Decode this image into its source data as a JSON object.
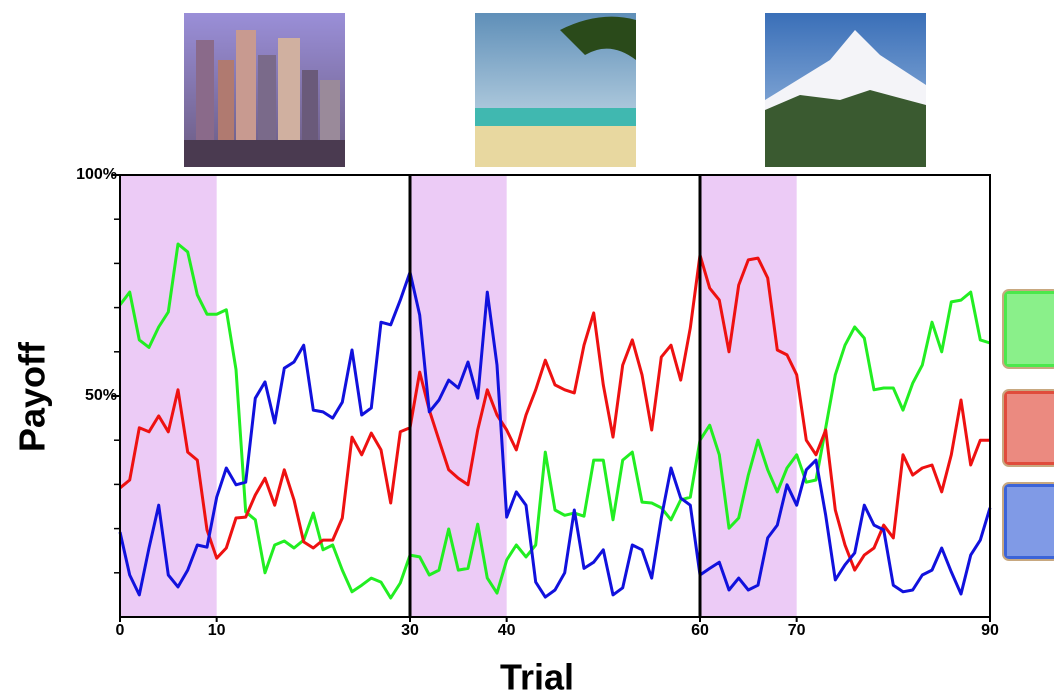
{
  "chart_data": {
    "type": "line",
    "xlabel": "Trial",
    "ylabel": "Payoff",
    "x": [
      0,
      1,
      2,
      3,
      4,
      5,
      6,
      7,
      8,
      9,
      10,
      11,
      12,
      13,
      14,
      15,
      16,
      17,
      18,
      19,
      20,
      21,
      22,
      23,
      24,
      25,
      26,
      27,
      28,
      29,
      30,
      31,
      32,
      33,
      34,
      35,
      36,
      37,
      38,
      39,
      40,
      41,
      42,
      43,
      44,
      45,
      46,
      47,
      48,
      49,
      50,
      51,
      52,
      53,
      54,
      55,
      56,
      57,
      58,
      59,
      60,
      61,
      62,
      63,
      64,
      65,
      66,
      67,
      68,
      69,
      70,
      71,
      72,
      73,
      74,
      75,
      76,
      77,
      78,
      79,
      80,
      81,
      82,
      83,
      84,
      85,
      86,
      87,
      88,
      89,
      90
    ],
    "series": [
      {
        "color": "#22ee22",
        "values": [
          70.6,
          73.5,
          62.7,
          61,
          65.6,
          69,
          84.4,
          82.6,
          72.9,
          68.5,
          68.5,
          69.5,
          56,
          23.8,
          22,
          10,
          16.3,
          17.2,
          15.6,
          17.4,
          23.5,
          15.2,
          16.3,
          10.6,
          5.7,
          7.2,
          8.8,
          7.9,
          4.3,
          7.7,
          14,
          13.6,
          9.5,
          10.6,
          19.9,
          10.6,
          11,
          21,
          8.8,
          5.4,
          12.9,
          16.3,
          13.6,
          16.3,
          37.3,
          24.2,
          23,
          23.5,
          22.8,
          35.5,
          35.5,
          22,
          35.5,
          37.3,
          26,
          25.8,
          24.7,
          22,
          26.5,
          27.1,
          40,
          43.4,
          36.7,
          20.1,
          22.4,
          32.1,
          40,
          33.3,
          28.3,
          33.7,
          36.7,
          30.5,
          31,
          42.8,
          54.8,
          61.5,
          65.6,
          63.1,
          51.4,
          51.8,
          51.8,
          46.8,
          52.9,
          57,
          66.7,
          60,
          71.3,
          71.7,
          73.5,
          62.7,
          62
        ]
      },
      {
        "color": "#ee1111",
        "values": [
          29.2,
          31,
          42.8,
          41.9,
          45.5,
          41.9,
          51.4,
          37.3,
          35.5,
          19.7,
          13.3,
          15.6,
          22.4,
          22.6,
          27.6,
          31.4,
          25.3,
          33.3,
          26.5,
          17,
          15.6,
          17.4,
          17.4,
          22.4,
          40.7,
          36.7,
          41.6,
          37.8,
          25.8,
          41.9,
          42.8,
          55.4,
          46.8,
          40,
          33.3,
          31.4,
          29.9,
          42.3,
          51.4,
          45.7,
          42.3,
          37.8,
          45.7,
          51.4,
          58.1,
          52.5,
          51.4,
          50.7,
          61.5,
          68.8,
          52.5,
          40.7,
          57,
          62.7,
          54.8,
          42.3,
          58.8,
          61.5,
          53.6,
          65.4,
          81.9,
          74.4,
          71.7,
          60,
          75.1,
          80.8,
          81.2,
          76.7,
          60.4,
          59.3,
          54.8,
          40,
          36.7,
          42.3,
          24.2,
          16.3,
          10.6,
          14,
          15.6,
          20.8,
          17.9,
          36.7,
          32.1,
          33.7,
          34.4,
          28.3,
          36.7,
          49.1,
          34.4,
          40,
          40
        ]
      },
      {
        "color": "#1111dd",
        "values": [
          19.2,
          9.5,
          5,
          15.6,
          25.3,
          9.5,
          6.8,
          10.6,
          16.3,
          15.8,
          27.1,
          33.7,
          29.9,
          30.5,
          49.5,
          53.2,
          43.9,
          56.3,
          57.7,
          61.5,
          46.8,
          46.4,
          45,
          48.6,
          60.4,
          45.7,
          47.3,
          66.7,
          66.1,
          71.7,
          78,
          68.3,
          46.4,
          49.1,
          53.6,
          51.8,
          57.7,
          49.5,
          73.5,
          57,
          22.6,
          28.3,
          25.3,
          7.9,
          4.5,
          6.1,
          10,
          24.2,
          11,
          12.4,
          15.2,
          5,
          6.6,
          16.3,
          15.2,
          8.8,
          22.4,
          33.7,
          26.9,
          25.3,
          9.5,
          11,
          12.4,
          6.1,
          8.8,
          6.1,
          7.2,
          17.9,
          20.8,
          29.9,
          25.3,
          33.3,
          35.5,
          23,
          8.4,
          11.8,
          14.5,
          25.3,
          20.8,
          19.7,
          7.2,
          5.7,
          6.1,
          9.5,
          10.6,
          15.6,
          10.2,
          5.2,
          14,
          17.4,
          24.7
        ]
      }
    ],
    "xlim": [
      0,
      90
    ],
    "xticks": [
      0,
      10,
      30,
      40,
      60,
      70,
      90
    ],
    "ylim": [
      0,
      100
    ],
    "yticks": [
      {
        "value": 50,
        "label": "50%"
      },
      {
        "value": 100,
        "label": "100%"
      }
    ],
    "minor_yticks": [
      10,
      20,
      30,
      40,
      60,
      70,
      80,
      90
    ],
    "highlight_ranges": [
      [
        0,
        10
      ],
      [
        30,
        40
      ],
      [
        60,
        70
      ]
    ],
    "highlight_color": "#eccbf6",
    "dividers": [
      30,
      60
    ]
  }
}
